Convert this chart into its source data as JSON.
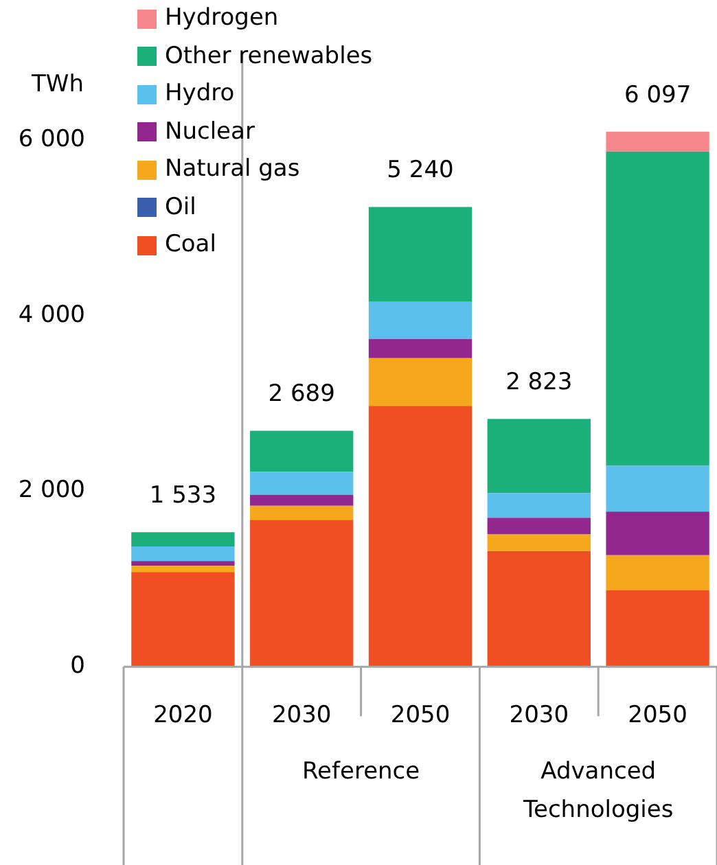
{
  "chart_data": {
    "type": "bar",
    "ylabel": "TWh",
    "stacked": true,
    "legend": "top left",
    "grid": false,
    "categories": [
      "2020",
      "2030",
      "2050",
      "2030",
      "2050"
    ],
    "ylim": [
      0,
      7000
    ],
    "yticks": [
      0,
      {
        "value": 2000,
        "label": "2 000"
      },
      {
        "value": 4000,
        "label": "4 000"
      },
      {
        "value": 6000,
        "label": "6 000"
      }
    ],
    "series": [
      {
        "name": "Coal",
        "color": "#f04e23",
        "values": [
          1080,
          1674,
          2972,
          1318,
          872
        ]
      },
      {
        "name": "Oil",
        "color": "#3a5fad",
        "values": [
          0,
          0,
          0,
          0,
          0
        ]
      },
      {
        "name": "Natural gas",
        "color": "#f5a81c",
        "values": [
          70,
          161,
          545,
          190,
          398
        ]
      },
      {
        "name": "Nuclear",
        "color": "#92278f",
        "values": [
          55,
          124,
          219,
          190,
          498
        ]
      },
      {
        "name": "Hydro",
        "color": "#5bc0ec",
        "values": [
          165,
          260,
          421,
          280,
          522
        ]
      },
      {
        "name": "Other renewables",
        "color": "#1baf7a",
        "values": [
          163,
          469,
          1083,
          845,
          3580
        ]
      },
      {
        "name": "Hydrogen",
        "color": "#f4868c",
        "values": [
          0,
          0,
          0,
          0,
          227
        ]
      }
    ],
    "totals": [
      "1 533",
      "2 689",
      "5 240",
      "2 823",
      "6 097"
    ],
    "annotations": [
      "Reference",
      "Advanced Technologies"
    ]
  }
}
